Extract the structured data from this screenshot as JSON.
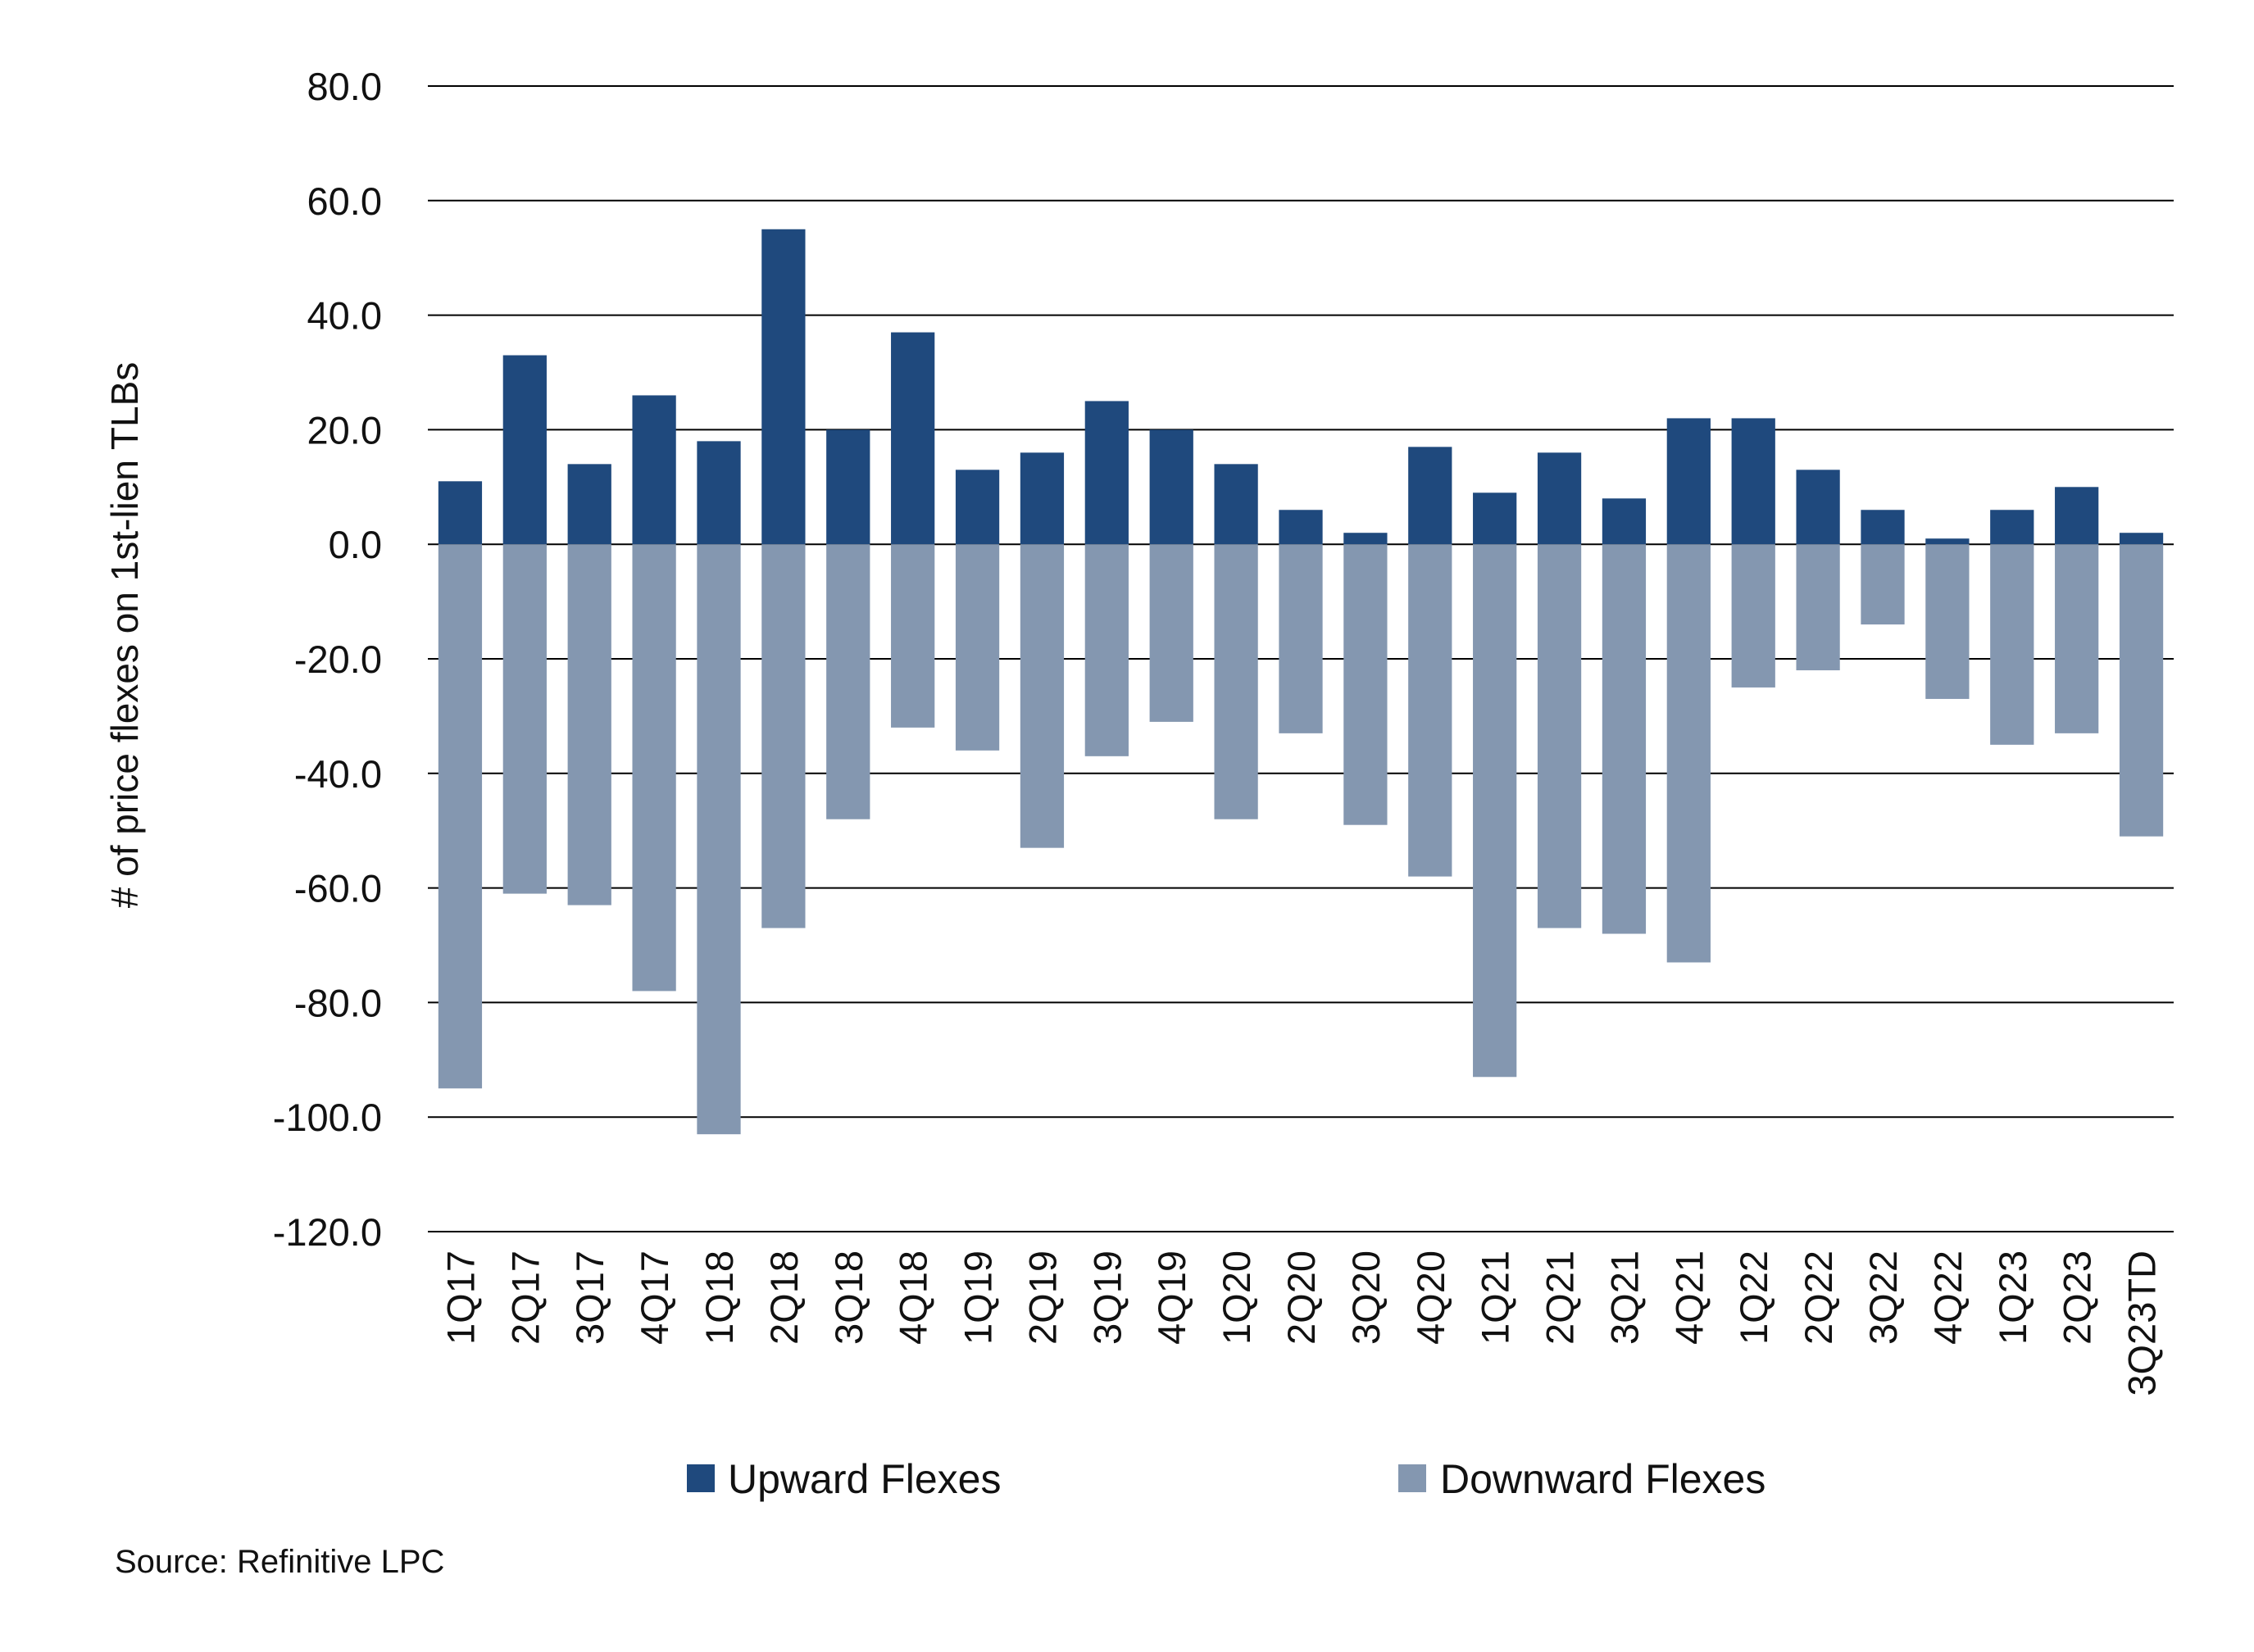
{
  "chart_data": {
    "type": "bar",
    "stacked": true,
    "title": "",
    "xlabel": "",
    "ylabel": "# of price flexes on 1st-lien TLBs",
    "ylim": [
      -120,
      80
    ],
    "yticks": [
      "80.0",
      "60.0",
      "40.0",
      "20.0",
      "0.0",
      "-20.0",
      "-40.0",
      "-60.0",
      "-80.0",
      "-100.0",
      "-120.0"
    ],
    "ytick_values": [
      80,
      60,
      40,
      20,
      0,
      -20,
      -40,
      -60,
      -80,
      -100,
      -120
    ],
    "grid": true,
    "legend_position": "bottom",
    "categories": [
      "1Q17",
      "2Q17",
      "3Q17",
      "4Q17",
      "1Q18",
      "2Q18",
      "3Q18",
      "4Q18",
      "1Q19",
      "2Q19",
      "3Q19",
      "4Q19",
      "1Q20",
      "2Q20",
      "3Q20",
      "4Q20",
      "1Q21",
      "2Q21",
      "3Q21",
      "4Q21",
      "1Q22",
      "2Q22",
      "3Q22",
      "4Q22",
      "1Q23",
      "2Q23",
      "3Q23TD"
    ],
    "series": [
      {
        "name": "Upward Flexes",
        "color": "#1f497d",
        "values": [
          11,
          33,
          14,
          26,
          18,
          55,
          20,
          37,
          13,
          16,
          25,
          20,
          14,
          6,
          2,
          17,
          9,
          16,
          8,
          22,
          22,
          13,
          6,
          1,
          6,
          10,
          2
        ]
      },
      {
        "name": "Downward Flexes",
        "color": "#8497b0",
        "values": [
          -95,
          -61,
          -63,
          -78,
          -103,
          -67,
          -48,
          -32,
          -36,
          -53,
          -37,
          -31,
          -48,
          -33,
          -49,
          -58,
          -93,
          -67,
          -68,
          -73,
          -25,
          -22,
          -14,
          -27,
          -35,
          -33,
          -51
        ]
      }
    ]
  },
  "source": "Source: Refinitive LPC"
}
